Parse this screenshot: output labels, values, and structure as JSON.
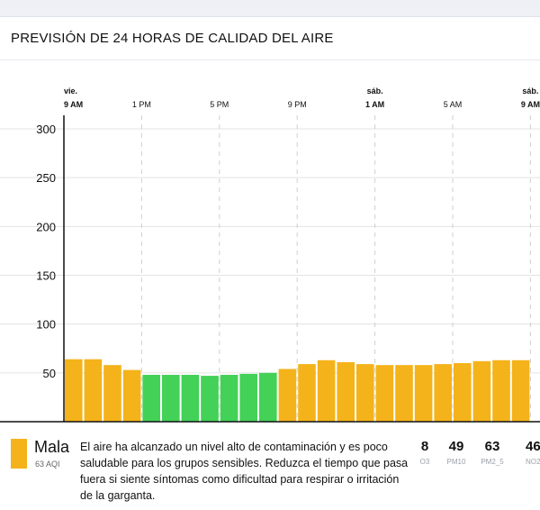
{
  "header": {
    "title": "PREVISIÓN DE 24 HORAS DE CALIDAD DEL AIRE"
  },
  "chart_data": {
    "type": "bar",
    "ylim": [
      0,
      300
    ],
    "y_ticks": [
      50,
      100,
      150,
      200,
      250,
      300
    ],
    "x_labels": [
      {
        "day": "vie.",
        "time": "9 AM",
        "index": 0,
        "bold": true
      },
      {
        "day": "",
        "time": "1 PM",
        "index": 4,
        "bold": false
      },
      {
        "day": "",
        "time": "5 PM",
        "index": 8,
        "bold": false
      },
      {
        "day": "",
        "time": "9 PM",
        "index": 12,
        "bold": false
      },
      {
        "day": "sáb.",
        "time": "1 AM",
        "index": 16,
        "bold": true
      },
      {
        "day": "",
        "time": "5 AM",
        "index": 20,
        "bold": false
      },
      {
        "day": "sáb.",
        "time": "9 AM",
        "index": 24,
        "bold": true
      }
    ],
    "values": [
      64,
      64,
      58,
      53,
      48,
      48,
      48,
      47,
      48,
      49,
      50,
      54,
      59,
      63,
      61,
      59,
      58,
      58,
      58,
      59,
      60,
      62,
      63,
      63
    ],
    "levels": [
      "mala",
      "mala",
      "mala",
      "mala",
      "buena",
      "buena",
      "buena",
      "buena",
      "buena",
      "buena",
      "buena",
      "mala",
      "mala",
      "mala",
      "mala",
      "mala",
      "mala",
      "mala",
      "mala",
      "mala",
      "mala",
      "mala",
      "mala",
      "mala"
    ],
    "colors": {
      "mala": "#f4b31a",
      "buena": "#43d158",
      "grid": "#e3e3e3",
      "axis": "#111111"
    }
  },
  "footer": {
    "level": "Mala",
    "aqi": "63 AQI",
    "description": "El aire ha alcanzado un nivel alto de contaminación y es poco saludable para los grupos sensibles. Reduzca el tiempo que pasa fuera si siente síntomas como dificultad para respirar o irritación de la garganta.",
    "pollutants": [
      {
        "value": "8",
        "name": "O3"
      },
      {
        "value": "49",
        "name": "PM10"
      },
      {
        "value": "63",
        "name": "PM2_5"
      },
      {
        "value": "46",
        "name": "NO2"
      }
    ]
  }
}
